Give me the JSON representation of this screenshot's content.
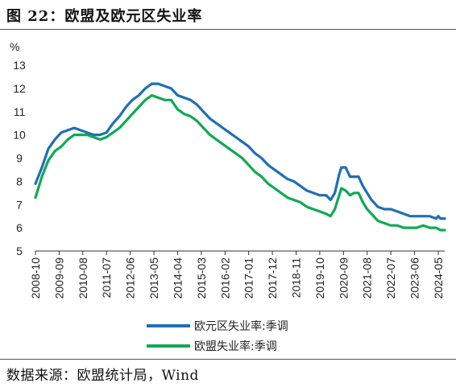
{
  "figure": {
    "title": "图 22：欧盟及欧元区失业率",
    "source": "数据来源：欧盟统计局，Wind"
  },
  "chart_data": {
    "type": "line",
    "unit": "%",
    "ylim": [
      5,
      13
    ],
    "yticks": [
      5,
      6,
      7,
      8,
      9,
      10,
      11,
      12,
      13
    ],
    "xrange": [
      "2008-10",
      "2024-08"
    ],
    "xticks": [
      "2008-10",
      "2009-09",
      "2010-08",
      "2011-07",
      "2012-06",
      "2013-05",
      "2014-04",
      "2015-03",
      "2016-02",
      "2017-01",
      "2017-12",
      "2018-11",
      "2019-10",
      "2020-09",
      "2021-08",
      "2022-07",
      "2023-06",
      "2024-05"
    ],
    "grid": false,
    "legend_position": "bottom",
    "series": [
      {
        "name": "欧元区失业率:季调",
        "color": "#1F6FB4",
        "points": [
          [
            "2008-10",
            7.9
          ],
          [
            "2009-01",
            8.6
          ],
          [
            "2009-04",
            9.4
          ],
          [
            "2009-07",
            9.8
          ],
          [
            "2009-10",
            10.1
          ],
          [
            "2010-01",
            10.2
          ],
          [
            "2010-04",
            10.3
          ],
          [
            "2010-07",
            10.2
          ],
          [
            "2010-10",
            10.1
          ],
          [
            "2011-01",
            10.0
          ],
          [
            "2011-04",
            10.0
          ],
          [
            "2011-07",
            10.1
          ],
          [
            "2011-10",
            10.5
          ],
          [
            "2012-01",
            10.8
          ],
          [
            "2012-04",
            11.2
          ],
          [
            "2012-07",
            11.5
          ],
          [
            "2012-10",
            11.7
          ],
          [
            "2013-01",
            12.0
          ],
          [
            "2013-04",
            12.2
          ],
          [
            "2013-07",
            12.2
          ],
          [
            "2013-10",
            12.1
          ],
          [
            "2014-01",
            12.0
          ],
          [
            "2014-04",
            11.7
          ],
          [
            "2014-07",
            11.6
          ],
          [
            "2014-10",
            11.5
          ],
          [
            "2015-01",
            11.3
          ],
          [
            "2015-04",
            11.0
          ],
          [
            "2015-07",
            10.7
          ],
          [
            "2015-10",
            10.5
          ],
          [
            "2016-01",
            10.3
          ],
          [
            "2016-04",
            10.1
          ],
          [
            "2016-07",
            9.9
          ],
          [
            "2016-10",
            9.7
          ],
          [
            "2017-01",
            9.5
          ],
          [
            "2017-04",
            9.2
          ],
          [
            "2017-07",
            9.0
          ],
          [
            "2017-10",
            8.7
          ],
          [
            "2018-01",
            8.5
          ],
          [
            "2018-04",
            8.3
          ],
          [
            "2018-07",
            8.1
          ],
          [
            "2018-10",
            8.0
          ],
          [
            "2019-01",
            7.8
          ],
          [
            "2019-04",
            7.6
          ],
          [
            "2019-07",
            7.5
          ],
          [
            "2019-10",
            7.4
          ],
          [
            "2020-01",
            7.4
          ],
          [
            "2020-03",
            7.2
          ],
          [
            "2020-05",
            7.5
          ],
          [
            "2020-07",
            8.3
          ],
          [
            "2020-08",
            8.6
          ],
          [
            "2020-10",
            8.6
          ],
          [
            "2020-12",
            8.2
          ],
          [
            "2021-02",
            8.2
          ],
          [
            "2021-04",
            8.2
          ],
          [
            "2021-06",
            7.8
          ],
          [
            "2021-08",
            7.5
          ],
          [
            "2021-10",
            7.2
          ],
          [
            "2022-01",
            6.9
          ],
          [
            "2022-04",
            6.8
          ],
          [
            "2022-07",
            6.8
          ],
          [
            "2022-10",
            6.7
          ],
          [
            "2023-01",
            6.6
          ],
          [
            "2023-04",
            6.5
          ],
          [
            "2023-07",
            6.5
          ],
          [
            "2023-10",
            6.5
          ],
          [
            "2024-01",
            6.5
          ],
          [
            "2024-04",
            6.4
          ],
          [
            "2024-05",
            6.5
          ],
          [
            "2024-06",
            6.4
          ],
          [
            "2024-08",
            6.4
          ]
        ]
      },
      {
        "name": "欧盟失业率:季调",
        "color": "#10A954",
        "points": [
          [
            "2008-10",
            7.3
          ],
          [
            "2009-01",
            8.2
          ],
          [
            "2009-04",
            8.9
          ],
          [
            "2009-07",
            9.3
          ],
          [
            "2009-10",
            9.5
          ],
          [
            "2010-01",
            9.8
          ],
          [
            "2010-04",
            10.0
          ],
          [
            "2010-07",
            10.0
          ],
          [
            "2010-10",
            10.0
          ],
          [
            "2011-01",
            9.9
          ],
          [
            "2011-04",
            9.8
          ],
          [
            "2011-07",
            9.9
          ],
          [
            "2011-10",
            10.1
          ],
          [
            "2012-01",
            10.3
          ],
          [
            "2012-04",
            10.6
          ],
          [
            "2012-07",
            10.9
          ],
          [
            "2012-10",
            11.2
          ],
          [
            "2013-01",
            11.5
          ],
          [
            "2013-04",
            11.7
          ],
          [
            "2013-07",
            11.6
          ],
          [
            "2013-10",
            11.5
          ],
          [
            "2014-01",
            11.5
          ],
          [
            "2014-04",
            11.1
          ],
          [
            "2014-07",
            10.9
          ],
          [
            "2014-10",
            10.8
          ],
          [
            "2015-01",
            10.6
          ],
          [
            "2015-04",
            10.3
          ],
          [
            "2015-07",
            10.0
          ],
          [
            "2015-10",
            9.8
          ],
          [
            "2016-01",
            9.6
          ],
          [
            "2016-04",
            9.4
          ],
          [
            "2016-07",
            9.2
          ],
          [
            "2016-10",
            9.0
          ],
          [
            "2017-01",
            8.7
          ],
          [
            "2017-04",
            8.4
          ],
          [
            "2017-07",
            8.2
          ],
          [
            "2017-10",
            7.9
          ],
          [
            "2018-01",
            7.7
          ],
          [
            "2018-04",
            7.5
          ],
          [
            "2018-07",
            7.3
          ],
          [
            "2018-10",
            7.2
          ],
          [
            "2019-01",
            7.1
          ],
          [
            "2019-04",
            6.9
          ],
          [
            "2019-07",
            6.8
          ],
          [
            "2019-10",
            6.7
          ],
          [
            "2020-01",
            6.6
          ],
          [
            "2020-03",
            6.5
          ],
          [
            "2020-05",
            6.8
          ],
          [
            "2020-07",
            7.4
          ],
          [
            "2020-08",
            7.7
          ],
          [
            "2020-10",
            7.6
          ],
          [
            "2020-12",
            7.4
          ],
          [
            "2021-02",
            7.5
          ],
          [
            "2021-04",
            7.5
          ],
          [
            "2021-06",
            7.1
          ],
          [
            "2021-08",
            6.8
          ],
          [
            "2021-10",
            6.6
          ],
          [
            "2022-01",
            6.3
          ],
          [
            "2022-04",
            6.2
          ],
          [
            "2022-07",
            6.1
          ],
          [
            "2022-10",
            6.1
          ],
          [
            "2023-01",
            6.0
          ],
          [
            "2023-04",
            6.0
          ],
          [
            "2023-07",
            6.0
          ],
          [
            "2023-10",
            6.1
          ],
          [
            "2024-01",
            6.0
          ],
          [
            "2024-04",
            6.0
          ],
          [
            "2024-06",
            5.9
          ],
          [
            "2024-08",
            5.9
          ]
        ]
      }
    ]
  }
}
